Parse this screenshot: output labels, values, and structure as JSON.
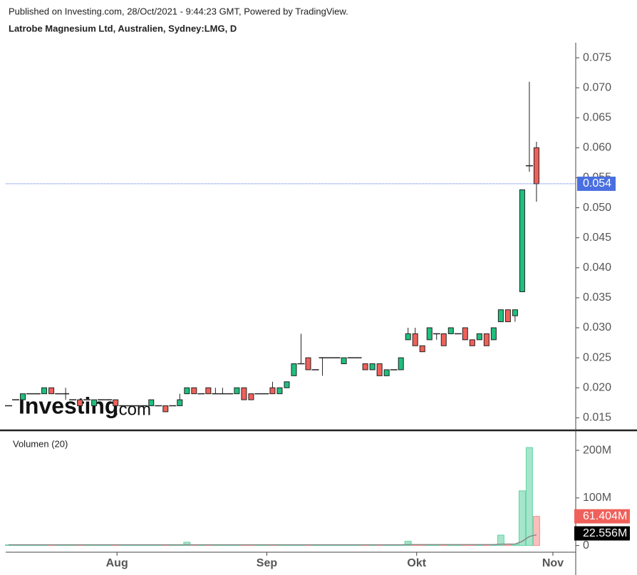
{
  "header": {
    "published": "Published on Investing.com, 28/Oct/2021 - 9:44:23 GMT, Powered by TradingView.",
    "instrument": "Latrobe Magnesium Ltd, Australien, Sydney:LMG, D"
  },
  "logo": {
    "name": "Investing",
    "suffix": ".com"
  },
  "chart_data": [
    {
      "type": "candlestick",
      "up_color": "#1fbf7d",
      "down_color": "#f0605a",
      "flat_color": "#222222",
      "last_line_color": "#4a6fe0",
      "open": [
        0.017,
        0.018,
        0.018,
        0.019,
        0.019,
        0.019,
        0.02,
        0.019,
        0.019,
        0.018,
        0.018,
        0.018,
        0.017,
        0.018,
        0.018,
        0.018,
        0.017,
        0.017,
        0.017,
        0.017,
        0.017,
        0.017,
        0.017,
        0.017,
        0.017,
        0.019,
        0.02,
        0.019,
        0.02,
        0.019,
        0.019,
        0.019,
        0.019,
        0.02,
        0.019,
        0.019,
        0.019,
        0.02,
        0.019,
        0.02,
        0.022,
        0.024,
        0.025,
        0.023,
        0.025,
        0.025,
        0.025,
        0.024,
        0.025,
        0.025,
        0.024,
        0.023,
        0.024,
        0.022,
        0.023,
        0.023,
        0.028,
        0.029,
        0.027,
        0.028,
        0.029,
        0.029,
        0.029,
        0.029,
        0.03,
        0.028,
        0.028,
        0.029,
        0.028,
        0.031,
        0.033,
        0.032,
        0.036,
        0.057,
        0.06
      ],
      "high": [
        0.017,
        0.018,
        0.019,
        0.019,
        0.019,
        0.02,
        0.02,
        0.019,
        0.02,
        0.018,
        0.018,
        0.018,
        0.018,
        0.018,
        0.018,
        0.018,
        0.017,
        0.017,
        0.017,
        0.017,
        0.018,
        0.017,
        0.017,
        0.017,
        0.019,
        0.02,
        0.02,
        0.019,
        0.02,
        0.02,
        0.02,
        0.019,
        0.02,
        0.02,
        0.019,
        0.019,
        0.019,
        0.021,
        0.02,
        0.021,
        0.024,
        0.029,
        0.025,
        0.023,
        0.025,
        0.025,
        0.025,
        0.025,
        0.025,
        0.025,
        0.024,
        0.024,
        0.024,
        0.023,
        0.023,
        0.025,
        0.03,
        0.03,
        0.027,
        0.03,
        0.029,
        0.029,
        0.03,
        0.029,
        0.03,
        0.028,
        0.029,
        0.029,
        0.03,
        0.033,
        0.033,
        0.033,
        0.053,
        0.071,
        0.061
      ],
      "low": [
        0.017,
        0.018,
        0.018,
        0.019,
        0.019,
        0.019,
        0.019,
        0.019,
        0.018,
        0.018,
        0.017,
        0.018,
        0.017,
        0.018,
        0.018,
        0.017,
        0.017,
        0.017,
        0.017,
        0.017,
        0.017,
        0.017,
        0.016,
        0.017,
        0.017,
        0.019,
        0.019,
        0.019,
        0.019,
        0.019,
        0.019,
        0.019,
        0.019,
        0.018,
        0.018,
        0.019,
        0.019,
        0.019,
        0.019,
        0.02,
        0.022,
        0.024,
        0.023,
        0.023,
        0.022,
        0.025,
        0.025,
        0.024,
        0.025,
        0.025,
        0.023,
        0.023,
        0.022,
        0.022,
        0.023,
        0.023,
        0.028,
        0.027,
        0.026,
        0.028,
        0.028,
        0.027,
        0.029,
        0.029,
        0.028,
        0.027,
        0.028,
        0.027,
        0.028,
        0.031,
        0.031,
        0.031,
        0.036,
        0.056,
        0.051
      ],
      "close": [
        0.017,
        0.018,
        0.019,
        0.019,
        0.019,
        0.02,
        0.019,
        0.019,
        0.019,
        0.018,
        0.017,
        0.018,
        0.018,
        0.018,
        0.018,
        0.017,
        0.017,
        0.017,
        0.017,
        0.017,
        0.018,
        0.017,
        0.016,
        0.017,
        0.018,
        0.02,
        0.019,
        0.019,
        0.019,
        0.019,
        0.019,
        0.019,
        0.02,
        0.018,
        0.018,
        0.019,
        0.019,
        0.019,
        0.02,
        0.021,
        0.024,
        0.024,
        0.023,
        0.023,
        0.025,
        0.025,
        0.025,
        0.025,
        0.025,
        0.025,
        0.023,
        0.024,
        0.022,
        0.023,
        0.023,
        0.025,
        0.029,
        0.027,
        0.026,
        0.03,
        0.029,
        0.027,
        0.03,
        0.029,
        0.028,
        0.027,
        0.029,
        0.027,
        0.03,
        0.033,
        0.031,
        0.033,
        0.053,
        0.057,
        0.054
      ],
      "last_value_label": "0.054",
      "xlim": [
        -0.4,
        79.5
      ],
      "ylim": [
        0.0129,
        0.0775
      ],
      "yticks": [
        0.015,
        {
          "value": 0.02,
          "label": "0.020"
        },
        0.025,
        {
          "value": 0.03,
          "label": "0.030"
        },
        0.035,
        {
          "value": 0.04,
          "label": "0.040"
        },
        0.045,
        {
          "value": 0.05,
          "label": "0.050"
        },
        0.055,
        {
          "value": 0.06,
          "label": "0.060"
        },
        0.065,
        {
          "value": 0.07,
          "label": "0.070"
        },
        0.075
      ]
    },
    {
      "type": "bar",
      "title": "Volumen (20)",
      "up_color": "#1fbf7d",
      "down_color": "#f0605a",
      "ma_color": "#888888",
      "values": [
        1500000,
        1500000,
        1500000,
        1500000,
        1500000,
        1500000,
        1500000,
        1500000,
        1500000,
        1500000,
        1500000,
        1500000,
        1500000,
        1500000,
        1500000,
        1500000,
        1500000,
        1500000,
        1500000,
        1500000,
        1500000,
        1500000,
        1500000,
        1500000,
        1500000,
        7000000,
        1500000,
        1500000,
        1500000,
        1500000,
        1500000,
        1500000,
        1500000,
        1500000,
        1500000,
        1500000,
        1500000,
        1500000,
        1500000,
        1500000,
        1500000,
        1500000,
        1500000,
        1500000,
        1500000,
        1500000,
        1500000,
        1500000,
        1500000,
        1500000,
        1500000,
        1500000,
        1500000,
        1500000,
        1500000,
        1500000,
        9000000,
        1500000,
        1500000,
        1500000,
        1500000,
        1500000,
        1500000,
        1500000,
        1500000,
        1500000,
        1500000,
        1500000,
        1500000,
        22000000,
        3000000,
        3000000,
        115000000,
        206000000,
        61404000
      ],
      "ma_values": [
        1500000,
        1500000,
        1500000,
        1500000,
        1500000,
        1500000,
        1500000,
        1500000,
        1500000,
        1500000,
        1500000,
        1500000,
        1500000,
        1500000,
        1500000,
        1500000,
        1500000,
        1500000,
        1500000,
        1500000,
        1500000,
        1500000,
        1500000,
        1500000,
        1500000,
        1500000,
        1500000,
        1500000,
        1500000,
        1500000,
        1500000,
        1500000,
        1500000,
        1500000,
        1500000,
        1500000,
        1500000,
        1500000,
        1500000,
        1500000,
        1500000,
        1500000,
        1500000,
        1500000,
        1500000,
        1500000,
        1500000,
        1500000,
        1500000,
        1500000,
        1500000,
        1500000,
        1500000,
        1500000,
        1500000,
        1500000,
        1900000,
        1900000,
        1900000,
        1900000,
        1900000,
        1900000,
        1900000,
        1900000,
        1900000,
        1900000,
        1900000,
        1900000,
        1900000,
        2900000,
        3000000,
        3100000,
        8800000,
        19000000,
        22556000
      ],
      "last_value_label": "61.404M",
      "ma_last_label": "22.556M",
      "xlim": [
        -0.4,
        79.5
      ],
      "xticks": [
        {
          "value": 15.2,
          "label": "Aug"
        },
        {
          "value": 36.2,
          "label": "Sep"
        },
        {
          "value": 57.2,
          "label": "Okt"
        },
        {
          "value": 76.3,
          "label": "Nov"
        }
      ],
      "ylim": [
        -14000000,
        236000000
      ],
      "yticks": [
        0,
        {
          "value": 100000000,
          "label": "100M"
        },
        {
          "value": 200000000,
          "label": "200M"
        }
      ]
    }
  ]
}
